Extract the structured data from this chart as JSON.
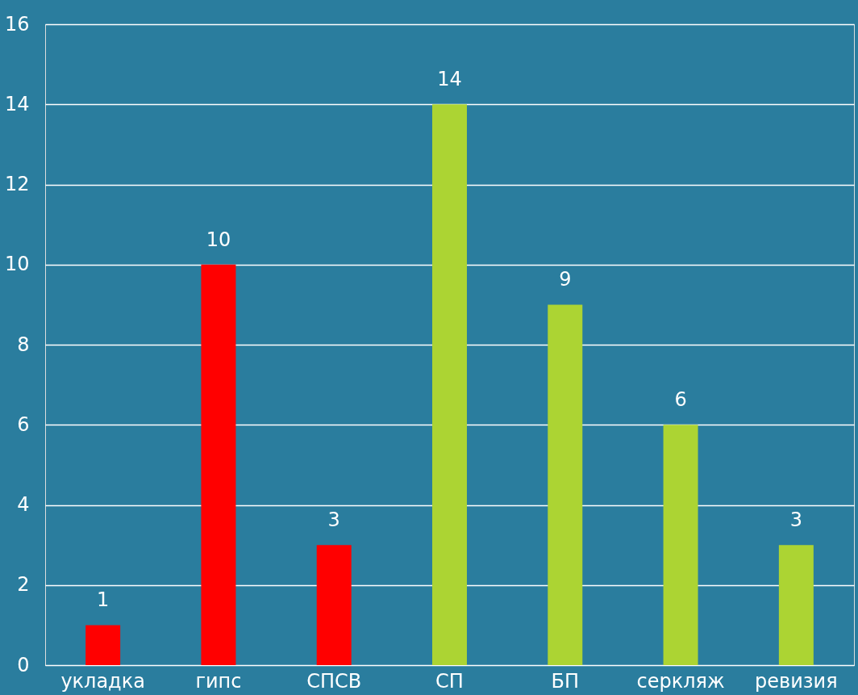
{
  "chart_data": {
    "type": "bar",
    "categories": [
      "укладка",
      "гипс",
      "СПСВ",
      "СП",
      "БП",
      "серкляж",
      "ревизия"
    ],
    "values": [
      1,
      10,
      3,
      14,
      9,
      6,
      3
    ],
    "colors": [
      "#ff0000",
      "#ff0000",
      "#ff0000",
      "#acd433",
      "#acd433",
      "#acd433",
      "#acd433"
    ],
    "ylim": [
      0,
      16
    ],
    "yticks": [
      0,
      2,
      4,
      6,
      8,
      10,
      12,
      14,
      16
    ],
    "grid": "y",
    "data_labels": true
  }
}
